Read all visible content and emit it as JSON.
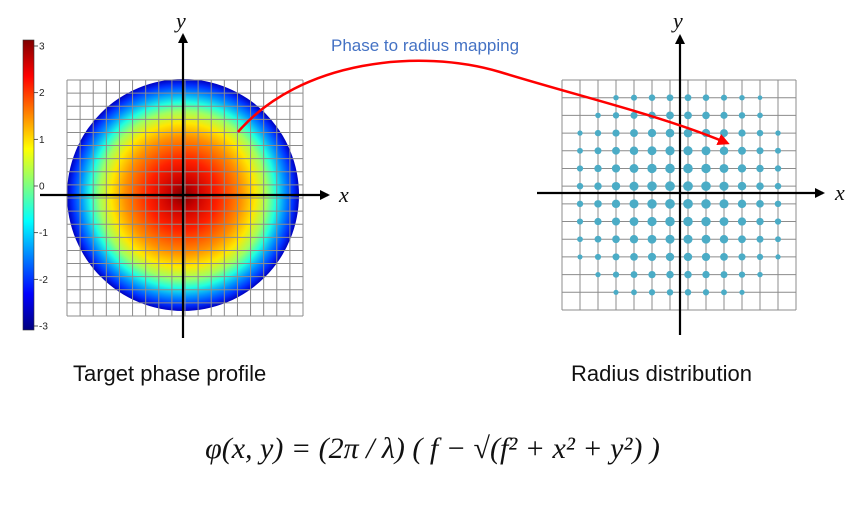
{
  "colorbar": {
    "ticks": [
      "3",
      "2",
      "1",
      "0",
      "-1",
      "-2",
      "-3"
    ],
    "colors": [
      "#7f0000",
      "#ff0000",
      "#ff7f00",
      "#ffff00",
      "#7fff7f",
      "#00ffff",
      "#007fff",
      "#0000ff",
      "#00007f"
    ]
  },
  "left_panel": {
    "x_label": "x",
    "y_label": "y",
    "caption": "Target phase profile"
  },
  "right_panel": {
    "x_label": "x",
    "y_label": "y",
    "caption": "Radius distribution",
    "dot_color": "#4bacc6"
  },
  "mapping_label": "Phase to radius mapping",
  "arrow_color": "#ff0000",
  "formula": "φ(x, y) = (2π / λ) ( f − √(f² + x² + y²) )"
}
